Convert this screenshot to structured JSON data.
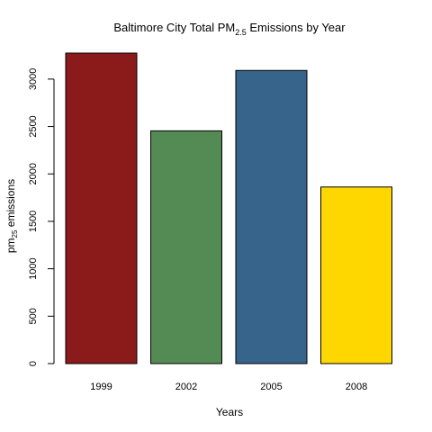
{
  "chart_data": {
    "type": "bar",
    "title": {
      "main": "Baltimore City Total PM",
      "subscript": "2.5",
      "rest": " Emissions by Year"
    },
    "xlabel": "Years",
    "ylabel": {
      "main": "pm",
      "subscript": "25",
      "rest": " emissions"
    },
    "categories": [
      "1999",
      "2002",
      "2005",
      "2008"
    ],
    "values": [
      3274,
      2454,
      3091,
      1862
    ],
    "colors": [
      "#8B1A1A",
      "#548B54",
      "#36648B",
      "#FFD700"
    ],
    "yticks": [
      0,
      500,
      1000,
      1500,
      2000,
      2500,
      3000
    ],
    "ylim": [
      0,
      3274
    ],
    "grid": false
  }
}
